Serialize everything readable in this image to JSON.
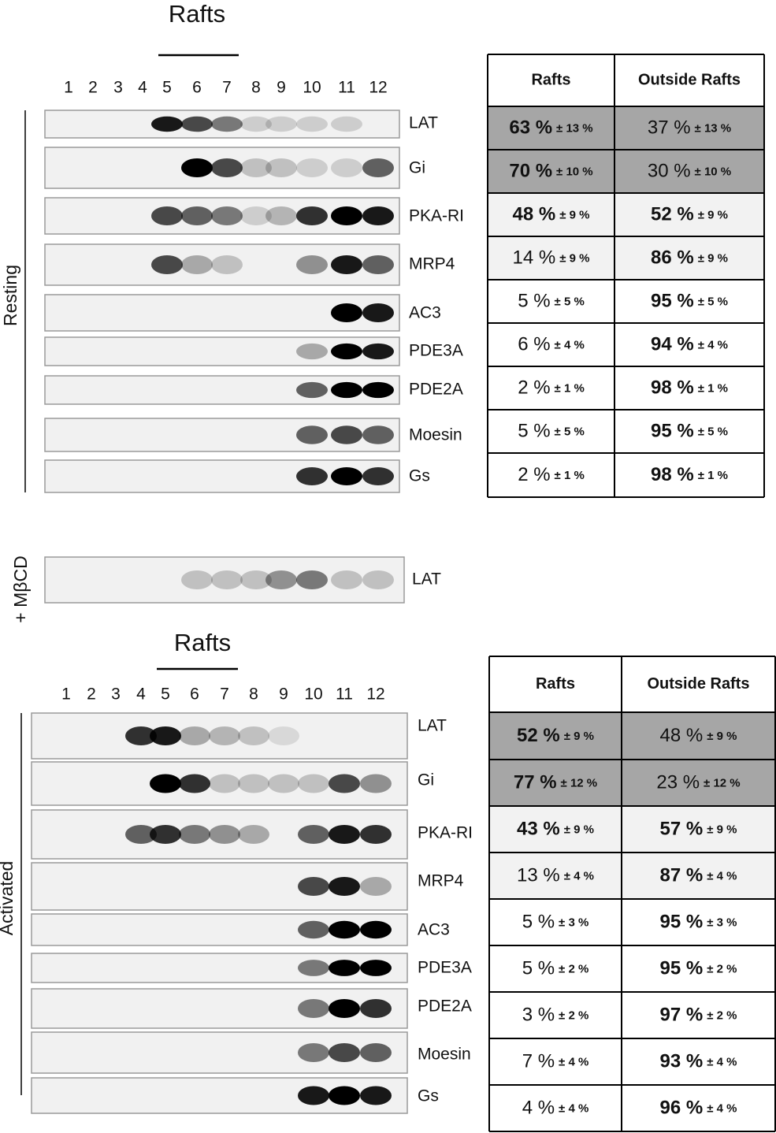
{
  "resting": {
    "title": "Rafts",
    "lanes": [
      "1",
      "2",
      "3",
      "4",
      "5",
      "6",
      "7",
      "8",
      "9",
      "10",
      "11",
      "12"
    ],
    "group_label": "Resting",
    "blots": [
      "LAT",
      "Gi",
      "PKA-RI",
      "MRP4",
      "AC3",
      "PDE3A",
      "PDE2A",
      "Moesin",
      "Gs"
    ],
    "table": {
      "headers": [
        "Rafts",
        "Outside Rafts"
      ],
      "rows": [
        [
          {
            "value": "63 %",
            "sd": "± 13 %"
          },
          {
            "value": "37 %",
            "sd": "± 13 %"
          }
        ],
        [
          {
            "value": "70 %",
            "sd": "± 10 %"
          },
          {
            "value": "30 %",
            "sd": "± 10 %"
          }
        ],
        [
          {
            "value": "48 %",
            "sd": "± 9 %"
          },
          {
            "value": "52 %",
            "sd": "± 9 %"
          }
        ],
        [
          {
            "value": "14 %",
            "sd": "± 9 %"
          },
          {
            "value": "86 %",
            "sd": "± 9 %"
          }
        ],
        [
          {
            "value": "5 %",
            "sd": "± 5 %"
          },
          {
            "value": "95 %",
            "sd": "± 5 %"
          }
        ],
        [
          {
            "value": "6 %",
            "sd": "± 4 %"
          },
          {
            "value": "94 %",
            "sd": "± 4 %"
          }
        ],
        [
          {
            "value": "2 %",
            "sd": "± 1 %"
          },
          {
            "value": "98 %",
            "sd": "± 1 %"
          }
        ],
        [
          {
            "value": "5 %",
            "sd": "± 5 %"
          },
          {
            "value": "95 %",
            "sd": "± 5 %"
          }
        ],
        [
          {
            "value": "2 %",
            "sd": "± 1 %"
          },
          {
            "value": "98 %",
            "sd": "± 1 %"
          }
        ]
      ]
    }
  },
  "mbcd": {
    "group_label": "+ MβCD",
    "blots": [
      "LAT"
    ]
  },
  "activated": {
    "title": "Rafts",
    "lanes": [
      "1",
      "2",
      "3",
      "4",
      "5",
      "6",
      "7",
      "8",
      "9",
      "10",
      "11",
      "12"
    ],
    "group_label": "Activated",
    "blots": [
      "LAT",
      "Gi",
      "PKA-RI",
      "MRP4",
      "AC3",
      "PDE3A",
      "PDE2A",
      "Moesin",
      "Gs"
    ],
    "table": {
      "headers": [
        "Rafts",
        "Outside Rafts"
      ],
      "rows": [
        [
          {
            "value": "52 %",
            "sd": "± 9 %"
          },
          {
            "value": "48 %",
            "sd": "± 9 %"
          }
        ],
        [
          {
            "value": "77 %",
            "sd": "± 12 %"
          },
          {
            "value": "23 %",
            "sd": "± 12 %"
          }
        ],
        [
          {
            "value": "43 %",
            "sd": "± 9 %"
          },
          {
            "value": "57 %",
            "sd": "± 9 %"
          }
        ],
        [
          {
            "value": "13 %",
            "sd": "± 4 %"
          },
          {
            "value": "87 %",
            "sd": "± 4 %"
          }
        ],
        [
          {
            "value": "5 %",
            "sd": "± 3 %"
          },
          {
            "value": "95 %",
            "sd": "± 3 %"
          }
        ],
        [
          {
            "value": "5 %",
            "sd": "± 2 %"
          },
          {
            "value": "95 %",
            "sd": "± 2 %"
          }
        ],
        [
          {
            "value": "3 %",
            "sd": "± 2 %"
          },
          {
            "value": "97 %",
            "sd": "± 2 %"
          }
        ],
        [
          {
            "value": "7 %",
            "sd": "± 4 %"
          },
          {
            "value": "93 %",
            "sd": "± 4 %"
          }
        ],
        [
          {
            "value": "4 %",
            "sd": "± 4 %"
          },
          {
            "value": "96 %",
            "sd": "± 4 %"
          }
        ]
      ]
    }
  }
}
